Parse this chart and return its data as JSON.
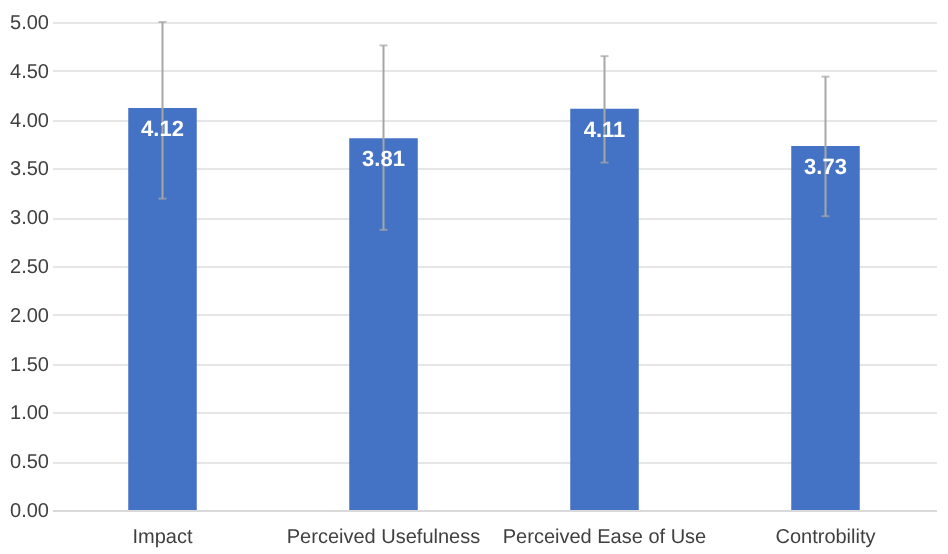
{
  "chart_data": {
    "type": "bar",
    "categories": [
      "Impact",
      "Perceived Usefulness",
      "Perceived Ease of Use",
      "Controbility"
    ],
    "values": [
      4.12,
      3.81,
      4.11,
      3.73
    ],
    "errors": [
      [
        3.19,
        5.0
      ],
      [
        2.87,
        4.76
      ],
      [
        3.56,
        4.65
      ],
      [
        3.01,
        4.44
      ]
    ],
    "color": "#4472c4",
    "data_labels": true,
    "ylim": [
      0,
      5
    ],
    "yticks": [
      {
        "value": 0,
        "label": "0.00"
      },
      {
        "value": 0.5,
        "label": "0.50"
      },
      {
        "value": 1,
        "label": "1.00"
      },
      {
        "value": 1.5,
        "label": "1.50"
      },
      {
        "value": 2,
        "label": "2.00"
      },
      {
        "value": 2.5,
        "label": "2.50"
      },
      {
        "value": 3,
        "label": "3.00"
      },
      {
        "value": 3.5,
        "label": "3.50"
      },
      {
        "value": 4,
        "label": "4.00"
      },
      {
        "value": 4.5,
        "label": "4.50"
      },
      {
        "value": 5,
        "label": "5.00"
      }
    ],
    "grid": "y"
  }
}
